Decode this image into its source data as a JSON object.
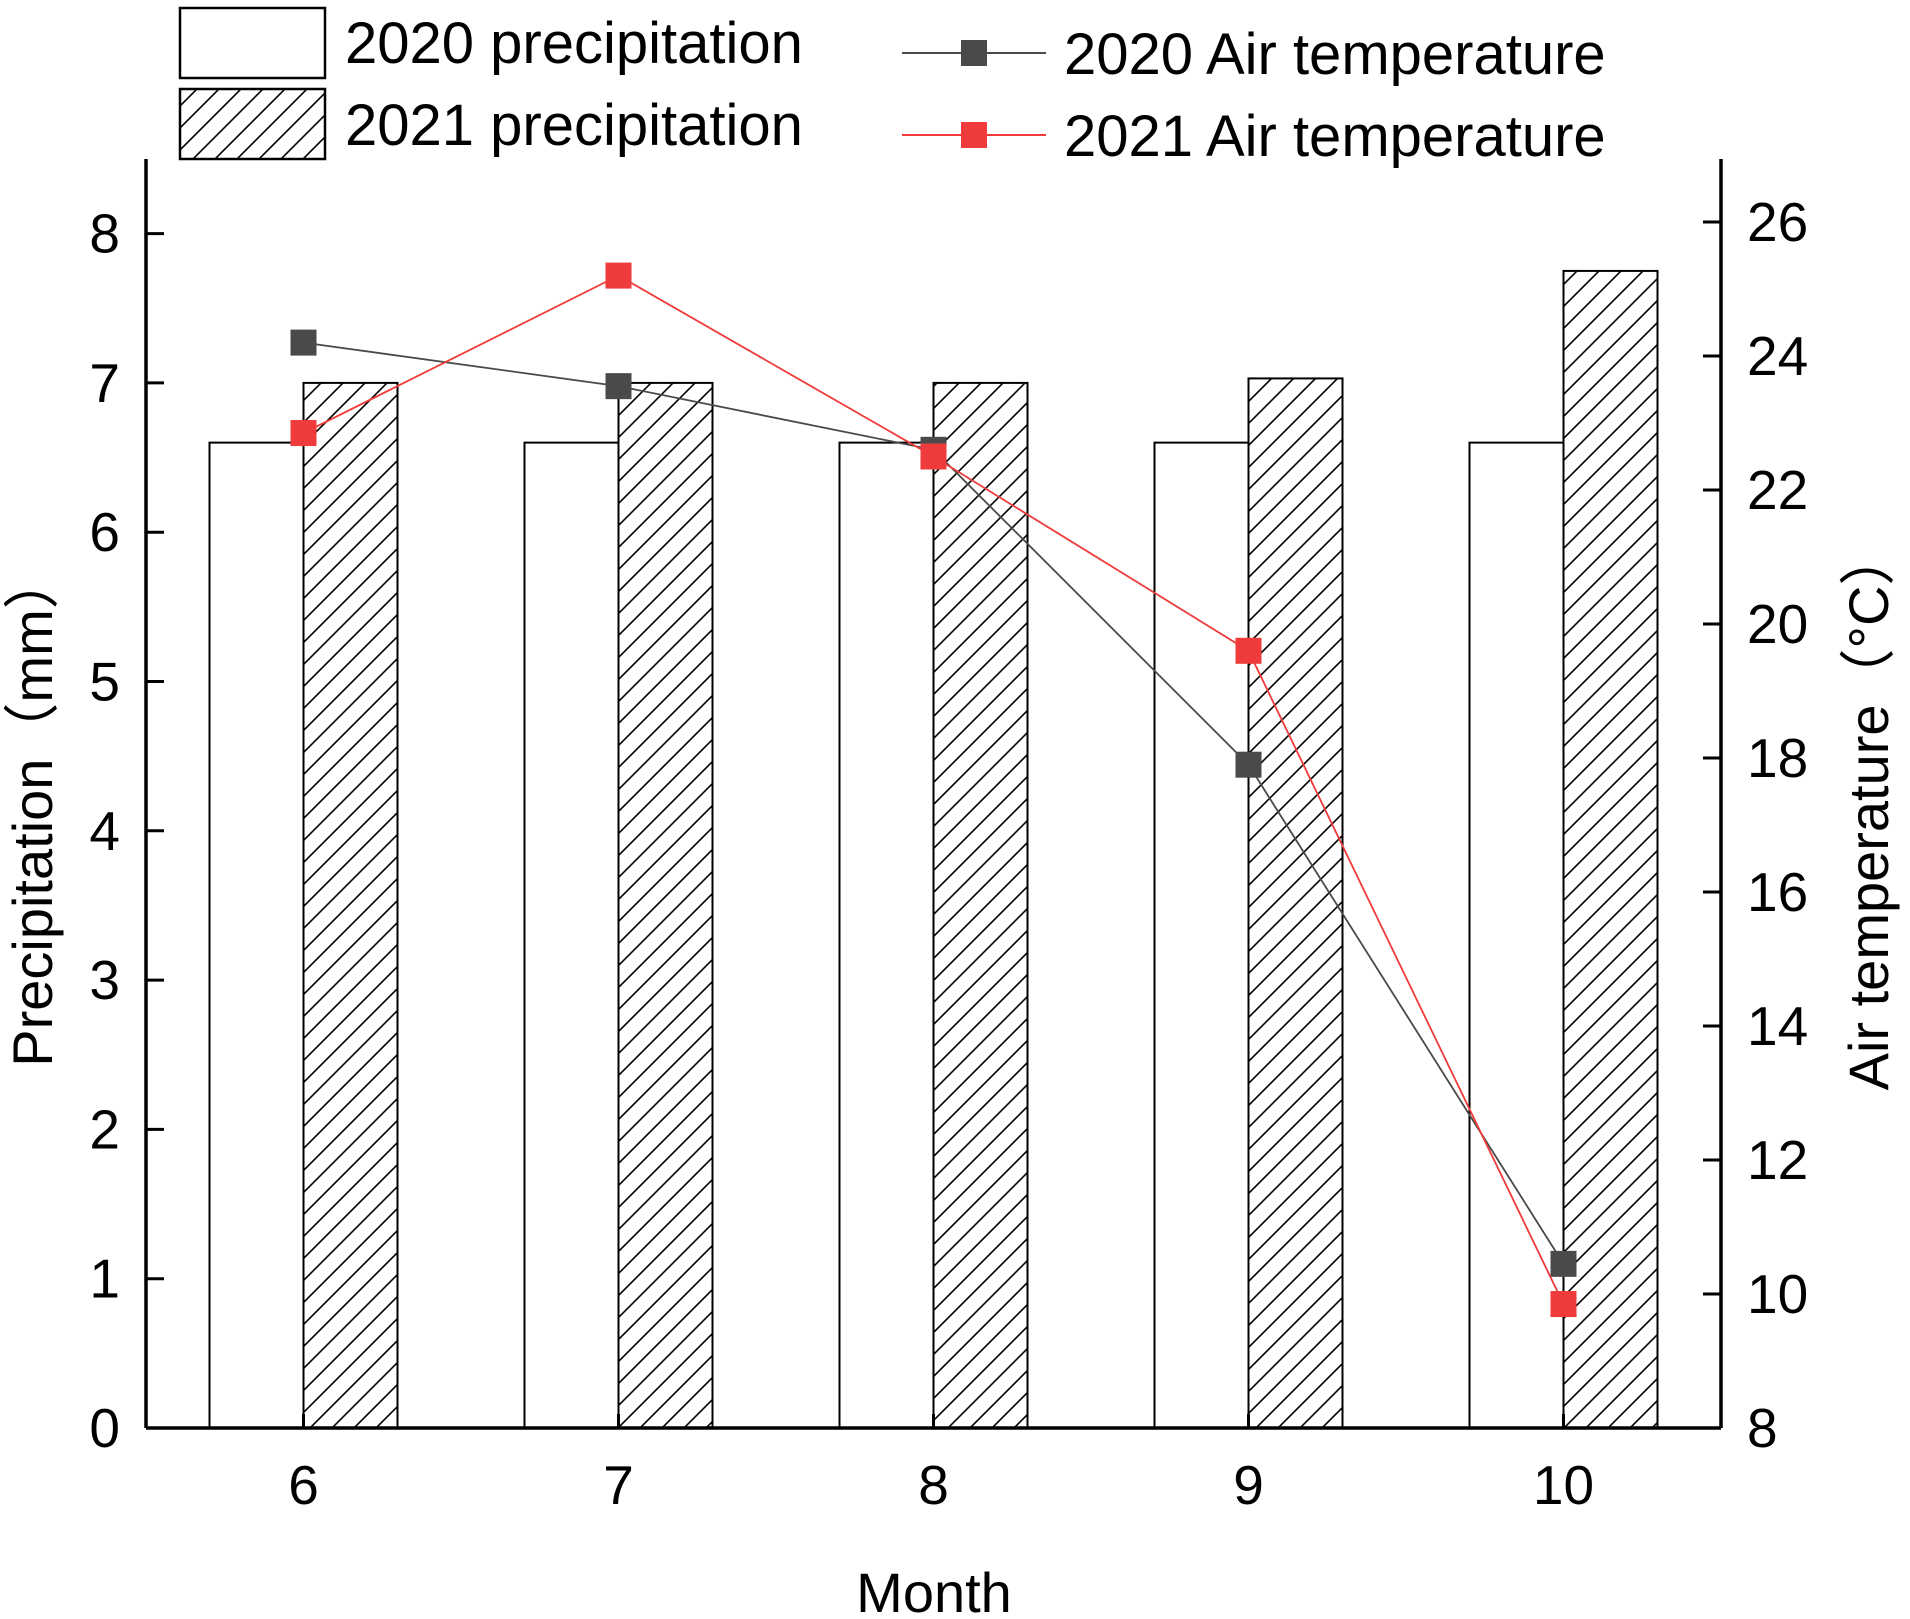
{
  "chart_data": {
    "type": "bar+line",
    "categories": [
      "6",
      "7",
      "8",
      "9",
      "10"
    ],
    "xlabel": "Month",
    "ylabel_left": "Precipitation（mm）",
    "ylabel_right": "Air temperature（°C）",
    "ylim_left": [
      0,
      8.5
    ],
    "yticks_left": [
      0,
      1,
      2,
      3,
      4,
      5,
      6,
      7,
      8
    ],
    "ylim_right": [
      8,
      27
    ],
    "yticks_right": [
      8,
      10,
      12,
      14,
      16,
      18,
      20,
      22,
      24,
      26
    ],
    "bar_series": [
      {
        "name": "2020 precipitation",
        "values": [
          6.6,
          6.6,
          6.6,
          6.6,
          6.6
        ],
        "fill": "#ffffff",
        "pattern": "none"
      },
      {
        "name": "2021 precipitation",
        "values": [
          7.0,
          7.0,
          7.0,
          7.03,
          7.75
        ],
        "fill": "#ffffff",
        "pattern": "diagonal-hatch"
      }
    ],
    "line_series": [
      {
        "name": "2020 Air temperature",
        "values": [
          24.2,
          23.55,
          22.6,
          17.9,
          10.45
        ],
        "color": "#4a4a4a"
      },
      {
        "name": "2021 Air temperature",
        "values": [
          22.85,
          25.2,
          22.5,
          19.6,
          9.85
        ],
        "color": "#ef3b3b"
      }
    ],
    "legend_position": "top"
  }
}
